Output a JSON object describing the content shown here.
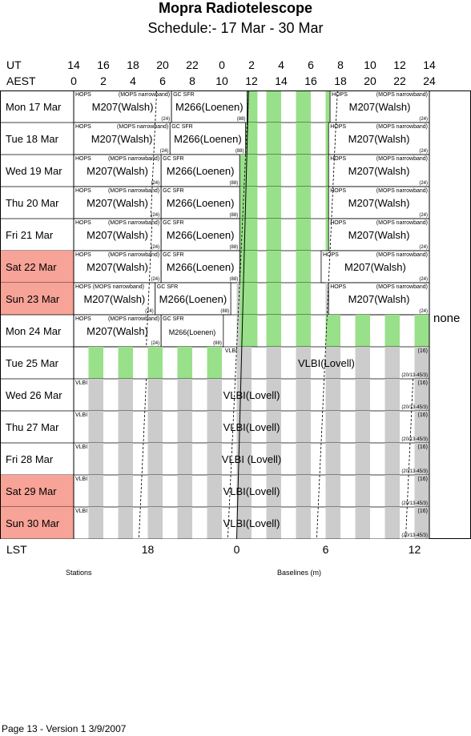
{
  "title": "Mopra Radiotelescope",
  "subtitle": "Schedule:- 17 Mar - 30 Mar",
  "axes": {
    "ut_label": "UT",
    "aest_label": "AEST",
    "lst_label": "LST",
    "ut_ticks": [
      "14",
      "16",
      "18",
      "20",
      "22",
      "0",
      "2",
      "4",
      "6",
      "8",
      "10",
      "12",
      "14"
    ],
    "aest_ticks": [
      "0",
      "2",
      "4",
      "6",
      "8",
      "10",
      "12",
      "14",
      "16",
      "18",
      "20",
      "22",
      "24"
    ],
    "lst_ticks": [
      {
        "label": "18",
        "aest": 5.0
      },
      {
        "label": "0",
        "aest": 11.0
      },
      {
        "label": "6",
        "aest": 17.0
      },
      {
        "label": "12",
        "aest": 23.0
      }
    ]
  },
  "colors": {
    "gray": "#cccccc",
    "green": "#99e08a",
    "weekend": "#f7a398",
    "line": "#000000"
  },
  "days": [
    {
      "label": "Mon  17 Mar",
      "weekend": false,
      "blocks": [
        {
          "start": 0,
          "end": 6.6,
          "title": "M207(Walsh)",
          "tl": "HOPS",
          "tr": "(MOPS narrowband)",
          "br": "(24)"
        },
        {
          "start": 6.6,
          "end": 11.7,
          "title": "M266(Loenen)",
          "tl": "GC SFR",
          "br": "(88)"
        },
        {
          "start": 17.3,
          "end": 24,
          "title": "M207(Walsh)",
          "tl": "HOPS",
          "tr": "(MOPS narrowband)",
          "br": "(24)"
        }
      ],
      "greens": [
        [
          11.7,
          12.4
        ],
        [
          13,
          14
        ],
        [
          15,
          16
        ],
        [
          17,
          17.3
        ]
      ],
      "lst": [
        5.6,
        11.8,
        17.8
      ]
    },
    {
      "label": "Tue   18 Mar",
      "weekend": false,
      "blocks": [
        {
          "start": 0,
          "end": 6.5,
          "title": "M207(Walsh)",
          "tl": "HOPS",
          "tr": "(MOPS narrowband)",
          "br": "(24)"
        },
        {
          "start": 6.5,
          "end": 11.6,
          "title": "M266(Loenen)",
          "tl": "GC SFR",
          "br": "(88)"
        },
        {
          "start": 17.2,
          "end": 24,
          "title": "M207(Walsh)",
          "tl": "HOPS",
          "tr": "(MOPS narrowband)",
          "br": "(24)"
        }
      ],
      "greens": [
        [
          11.6,
          12.4
        ],
        [
          13,
          14
        ],
        [
          15,
          16
        ],
        [
          17,
          17.2
        ]
      ],
      "lst": [
        5.5,
        11.7,
        17.7
      ]
    },
    {
      "label": "Wed  19 Mar",
      "weekend": false,
      "blocks": [
        {
          "start": 0,
          "end": 5.9,
          "title": "M207(Walsh)",
          "tl": "HOPS",
          "tr": "(MOPS narrowband)",
          "br": "(24)"
        },
        {
          "start": 5.9,
          "end": 11.2,
          "title": "M266(Loenen)",
          "tl": "GC SFR",
          "br": "(88)"
        },
        {
          "start": 17.2,
          "end": 24,
          "title": "M207(Walsh)",
          "tl": "HOPS",
          "tr": "(MOPS narrowband)",
          "br": "(24)"
        }
      ],
      "greens": [
        [
          11.2,
          12
        ],
        [
          12,
          12.4
        ],
        [
          13,
          14
        ],
        [
          15,
          16
        ],
        [
          17,
          17.2
        ]
      ],
      "lst": [
        5.4,
        11.6,
        17.6
      ]
    },
    {
      "label": "Thu   20 Mar",
      "weekend": false,
      "blocks": [
        {
          "start": 0,
          "end": 5.9,
          "title": "M207(Walsh)",
          "tl": "HOPS",
          "tr": "(MOPS narrowband)",
          "br": "(24)"
        },
        {
          "start": 5.9,
          "end": 11.2,
          "title": "M266(Loenen)",
          "tl": "GC SFR",
          "br": "(88)"
        },
        {
          "start": 17.2,
          "end": 24,
          "title": "M207(Walsh)",
          "tl": "HOPS",
          "tr": "(MOPS narrowband)",
          "br": "(24)"
        }
      ],
      "greens": [
        [
          11.2,
          12.4
        ],
        [
          13,
          14
        ],
        [
          15,
          16
        ],
        [
          17,
          17.2
        ]
      ],
      "lst": [
        5.3,
        11.5,
        17.5
      ]
    },
    {
      "label": "Fri    21 Mar",
      "weekend": false,
      "blocks": [
        {
          "start": 0,
          "end": 5.9,
          "title": "M207(Walsh)",
          "tl": "HOPS",
          "tr": "(MOPS narrowband)",
          "br": "(24)"
        },
        {
          "start": 5.9,
          "end": 11.2,
          "title": "M266(Loenen)",
          "tl": "GC SFR",
          "br": "(88)"
        },
        {
          "start": 17.2,
          "end": 24,
          "title": "M207(Walsh)",
          "tl": "HOPS",
          "tr": "(MOPS narrowband)",
          "br": "(24)"
        }
      ],
      "greens": [
        [
          11.2,
          12.4
        ],
        [
          13,
          14
        ],
        [
          15,
          16
        ],
        [
          17,
          17.2
        ]
      ],
      "lst": [
        5.3,
        11.4,
        17.4
      ]
    },
    {
      "label": "Sat   22 Mar",
      "weekend": true,
      "blocks": [
        {
          "start": 0,
          "end": 5.9,
          "title": "M207(Walsh)",
          "tl": "HOPS",
          "tr": "(MOPS narrowband)",
          "br": "(24)"
        },
        {
          "start": 5.9,
          "end": 11.2,
          "title": "M266(Loenen)",
          "tl": "GC SFR",
          "br": "(88)"
        },
        {
          "start": 16.7,
          "end": 24,
          "title": "M207(Walsh)",
          "tl": "HOPS",
          "tr": "(MOPS narrowband)",
          "br": "(24)"
        }
      ],
      "greens": [
        [
          11.2,
          12.4
        ],
        [
          13,
          14
        ],
        [
          15,
          16
        ]
      ],
      "lst": [
        5.2,
        11.3,
        17.3
      ]
    },
    {
      "label": "Sun   23 Mar",
      "weekend": true,
      "blocks": [
        {
          "start": 0,
          "end": 5.5,
          "title": "M207(Walsh)",
          "tl": "HOPS (MOPS narrowband)",
          "br": "(24)"
        },
        {
          "start": 5.5,
          "end": 10.6,
          "title": "M266(Loenen)",
          "tl": "GC SFR",
          "br": "(88)"
        },
        {
          "start": 17.2,
          "end": 24,
          "title": "M207(Walsh)",
          "tl": "HOPS",
          "tr": "(MOPS narrowband)",
          "br": "(24)"
        }
      ],
      "greens": [
        [
          11.2,
          12.4
        ],
        [
          13,
          14
        ],
        [
          15,
          16
        ]
      ],
      "lst": [
        5.1,
        11.2,
        17.2
      ]
    },
    {
      "label": "Mon  24 Mar",
      "weekend": false,
      "blocks": [
        {
          "start": 0,
          "end": 5.9,
          "title": "M207(Walsh)",
          "tl": "HOPS",
          "tr": "(MOPS narrowband)",
          "br": "(24)"
        },
        {
          "start": 5.9,
          "end": 10.1,
          "title": "M266(Loenen)",
          "tl": "GC SFR",
          "br": "(88)",
          "small": true
        }
      ],
      "greens": [
        [
          11.2,
          12
        ],
        [
          12,
          12.4
        ],
        [
          13,
          14
        ],
        [
          15,
          16
        ],
        [
          17,
          18
        ],
        [
          19,
          20
        ],
        [
          21,
          22
        ],
        [
          23,
          24
        ]
      ],
      "lst": [
        5.0,
        11.1,
        17.1
      ]
    },
    {
      "label": "Tue   25 Mar",
      "weekend": false,
      "blocks": [
        {
          "start": 10.1,
          "end": 24,
          "title": "VLBI(Lovell)",
          "tl": "VLBI",
          "tr": "(16)",
          "br": "(20/13-45/3)"
        }
      ],
      "greens": [
        [
          1,
          2
        ],
        [
          3,
          4
        ],
        [
          5,
          6
        ],
        [
          7,
          8
        ],
        [
          9,
          10
        ]
      ],
      "lst": [
        11.0,
        17.0
      ]
    },
    {
      "label": "Wed  26 Mar",
      "weekend": false,
      "blocks": [
        {
          "start": 0,
          "end": 24,
          "title": "VLBI(Lovell)",
          "tl": "VLBI",
          "tr": "(16)",
          "br": "(20/13-45/3)"
        }
      ],
      "greens": [],
      "lst": [
        4.9,
        10.9,
        16.9,
        22.9
      ]
    },
    {
      "label": "Thu   27 Mar",
      "weekend": false,
      "blocks": [
        {
          "start": 0,
          "end": 24,
          "title": "VLBI(Lovell)",
          "tl": "VLBI",
          "tr": "(16)",
          "br": "(20/13-45/3)"
        }
      ],
      "greens": [],
      "lst": [
        4.8,
        10.8,
        16.8,
        22.8
      ]
    },
    {
      "label": "Fri    28 Mar",
      "weekend": false,
      "blocks": [
        {
          "start": 0,
          "end": 24,
          "title": "VLBI (Lovell)",
          "tl": "VLBI",
          "tr": "(16)",
          "br": "(20/13-45/3)"
        }
      ],
      "greens": [],
      "lst": [
        4.7,
        10.7,
        16.7,
        22.7
      ]
    },
    {
      "label": "Sat   29 Mar",
      "weekend": true,
      "blocks": [
        {
          "start": 0,
          "end": 24,
          "title": "VLBI(Lovell)",
          "tl": "VLBI",
          "tr": "(16)",
          "br": "(20/13-45/3)"
        }
      ],
      "greens": [],
      "lst": [
        4.6,
        10.6,
        16.6,
        22.6
      ]
    },
    {
      "label": "Sun   30 Mar",
      "weekend": true,
      "blocks": [
        {
          "start": 0,
          "end": 24,
          "title": "VLBI(Lovell)",
          "tl": "VLBI",
          "tr": "(16)",
          "br": "(20/13-45/3)"
        }
      ],
      "greens": [],
      "lst": [
        4.5,
        10.5,
        16.5,
        22.5
      ]
    }
  ],
  "side_note": "none",
  "stations_label": "Stations",
  "baselines_label": "Baselines (m)",
  "footer": "Page 13 - Version 1  3/9/2007"
}
